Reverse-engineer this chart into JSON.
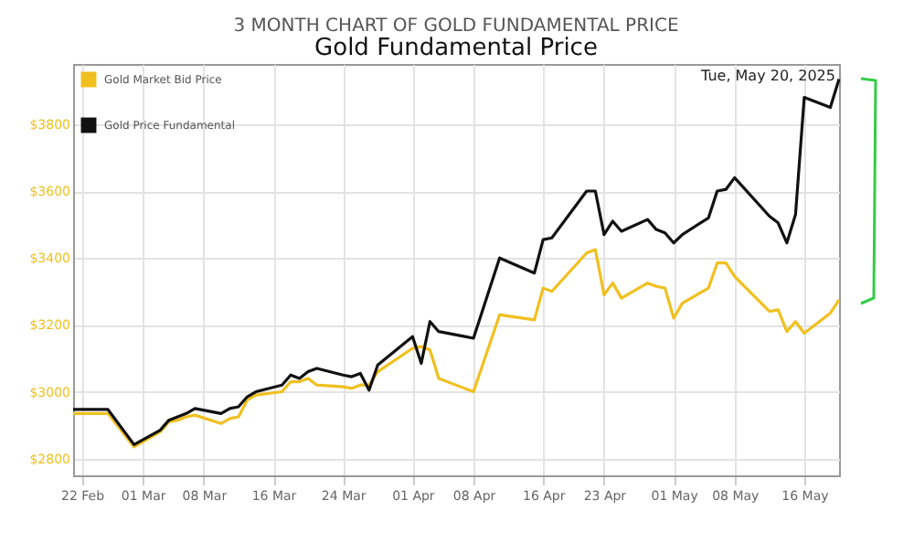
{
  "chart_data": {
    "type": "line",
    "title": "Gold Fundamental Price",
    "subtitle": "3 MONTH CHART OF GOLD FUNDAMENTAL PRICE",
    "annotations": [
      "Tue, May 20, 2025"
    ],
    "x": [
      "2025-02-21",
      "2025-02-24",
      "2025-02-25",
      "2025-02-28",
      "2025-03-03",
      "2025-03-04",
      "2025-03-05",
      "2025-03-06",
      "2025-03-07",
      "2025-03-10",
      "2025-03-11",
      "2025-03-12",
      "2025-03-13",
      "2025-03-14",
      "2025-03-17",
      "2025-03-18",
      "2025-03-19",
      "2025-03-20",
      "2025-03-21",
      "2025-03-24",
      "2025-03-25",
      "2025-03-26",
      "2025-03-27",
      "2025-03-28",
      "2025-04-01",
      "2025-04-02",
      "2025-04-03",
      "2025-04-04",
      "2025-04-07",
      "2025-04-08",
      "2025-04-11",
      "2025-04-15",
      "2025-04-16",
      "2025-04-17",
      "2025-04-21",
      "2025-04-22",
      "2025-04-23",
      "2025-04-24",
      "2025-04-25",
      "2025-04-28",
      "2025-04-29",
      "2025-04-30",
      "2025-05-01",
      "2025-05-02",
      "2025-05-05",
      "2025-05-06",
      "2025-05-07",
      "2025-05-08",
      "2025-05-12",
      "2025-05-13",
      "2025-05-14",
      "2025-05-15",
      "2025-05-16",
      "2025-05-19",
      "2025-05-20"
    ],
    "series": [
      {
        "name": "Gold Market Bid Price",
        "color": "#f0c020",
        "values": [
          2935,
          2935,
          2935,
          2835,
          2880,
          2910,
          2915,
          2925,
          2930,
          2905,
          2920,
          2925,
          2975,
          2990,
          3000,
          3030,
          3030,
          3040,
          3020,
          3015,
          3010,
          3020,
          3020,
          3060,
          3130,
          3135,
          3125,
          3040,
          3010,
          3000,
          3230,
          3215,
          3310,
          3300,
          3415,
          3425,
          3290,
          3325,
          3280,
          3325,
          3315,
          3310,
          3220,
          3265,
          3310,
          3385,
          3385,
          3345,
          3240,
          3245,
          3180,
          3210,
          3175,
          3235,
          3275
        ]
      },
      {
        "name": "Gold Price Fundamental",
        "color": "#111111",
        "values": [
          2947,
          2947,
          2947,
          2842,
          2885,
          2915,
          2925,
          2935,
          2950,
          2935,
          2950,
          2955,
          2985,
          3000,
          3020,
          3050,
          3040,
          3060,
          3070,
          3050,
          3045,
          3055,
          3005,
          3080,
          3165,
          3085,
          3210,
          3180,
          3165,
          3160,
          3400,
          3355,
          3455,
          3460,
          3600,
          3600,
          3470,
          3510,
          3480,
          3515,
          3485,
          3475,
          3445,
          3470,
          3520,
          3600,
          3605,
          3640,
          3525,
          3505,
          3445,
          3530,
          3880,
          3850,
          3935
        ]
      }
    ],
    "xlim": [
      "2025-02-21",
      "2025-05-20"
    ],
    "xticks": [
      {
        "value": "2025-02-22",
        "label": "22 Feb"
      },
      {
        "value": "2025-03-01",
        "label": "01 Mar"
      },
      {
        "value": "2025-03-08",
        "label": "08 Mar"
      },
      {
        "value": "2025-03-16",
        "label": "16 Mar"
      },
      {
        "value": "2025-03-24",
        "label": "24 Mar"
      },
      {
        "value": "2025-04-01",
        "label": "01 Apr"
      },
      {
        "value": "2025-04-08",
        "label": "08 Apr"
      },
      {
        "value": "2025-04-16",
        "label": "16 Apr"
      },
      {
        "value": "2025-04-23",
        "label": "23 Apr"
      },
      {
        "value": "2025-05-01",
        "label": "01 May"
      },
      {
        "value": "2025-05-08",
        "label": "08 May"
      },
      {
        "value": "2025-05-16",
        "label": "16 May"
      }
    ],
    "ylim": [
      2750,
      3980
    ],
    "yticks": [
      {
        "value": 2800,
        "label": "$2800"
      },
      {
        "value": 3000,
        "label": "$3000"
      },
      {
        "value": 3200,
        "label": "$3200"
      },
      {
        "value": 3400,
        "label": "$3400"
      },
      {
        "value": 3600,
        "label": "$3600"
      },
      {
        "value": 3800,
        "label": "$3800"
      }
    ],
    "grid": true,
    "legend": "top left",
    "marker": "none",
    "line_style": "solid"
  }
}
